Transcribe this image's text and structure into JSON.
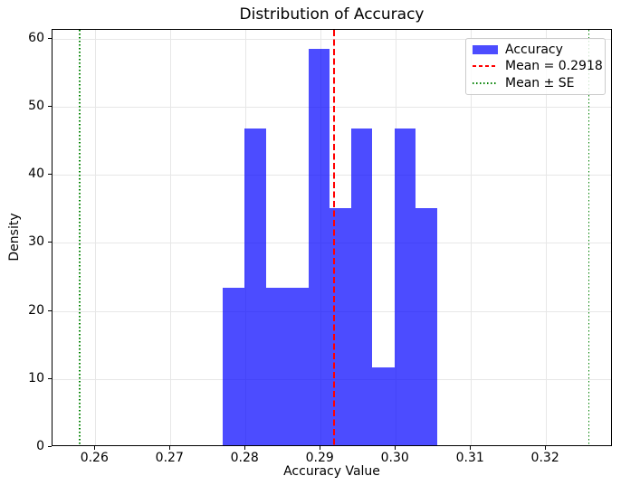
{
  "chart_data": {
    "type": "bar",
    "variant": "histogram",
    "title": "Distribution of Accuracy",
    "xlabel": "Accuracy Value",
    "ylabel": "Density",
    "bin_edges": [
      0.277,
      0.2798,
      0.2827,
      0.2855,
      0.2884,
      0.2912,
      0.2941,
      0.2969,
      0.2998,
      0.3026,
      0.3055
    ],
    "densities": [
      23.4,
      46.8,
      23.4,
      23.4,
      58.5,
      35.1,
      46.8,
      11.7,
      46.8,
      35.1
    ],
    "mean": 0.2918,
    "se": 0.0339,
    "mean_minus_se": 0.2579,
    "mean_plus_se": 0.3257,
    "xlim": [
      0.2543,
      0.3289
    ],
    "ylim": [
      0,
      61.3
    ],
    "grid": true,
    "legend_position": "upper right",
    "xticks": [
      {
        "value": 0.26,
        "label": "0.26"
      },
      {
        "value": 0.27,
        "label": "0.27"
      },
      {
        "value": 0.28,
        "label": "0.28"
      },
      {
        "value": 0.29,
        "label": "0.29"
      },
      {
        "value": 0.3,
        "label": "0.30"
      },
      {
        "value": 0.31,
        "label": "0.31"
      },
      {
        "value": 0.32,
        "label": "0.32"
      }
    ],
    "yticks": [
      {
        "value": 0,
        "label": "0"
      },
      {
        "value": 10,
        "label": "10"
      },
      {
        "value": 20,
        "label": "20"
      },
      {
        "value": 30,
        "label": "30"
      },
      {
        "value": 40,
        "label": "40"
      },
      {
        "value": 50,
        "label": "50"
      },
      {
        "value": 60,
        "label": "60"
      }
    ],
    "legend": {
      "items": [
        {
          "label": "Accuracy",
          "type": "patch",
          "color": "rgba(0,0,255,0.7)"
        },
        {
          "label": "Mean = 0.2918",
          "type": "dashed-line",
          "color": "#ff0000"
        },
        {
          "label": "Mean ± SE",
          "type": "dotted-line",
          "color": "#008000"
        }
      ]
    },
    "colors": {
      "bar": "rgba(0,0,255,0.7)",
      "mean_line": "#ff0000",
      "se_line": "#008000",
      "grid": "#e7e7e7",
      "spine": "#000000"
    }
  }
}
